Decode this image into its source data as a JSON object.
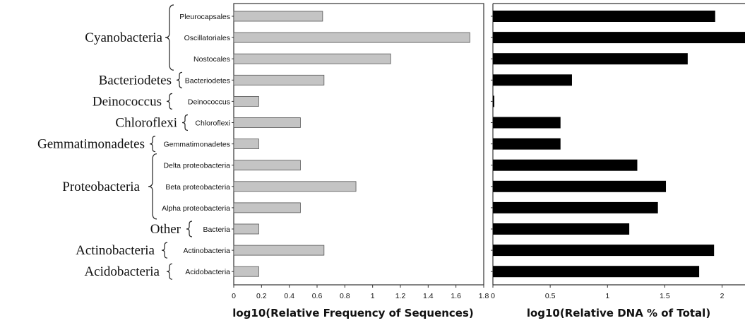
{
  "chart_data": [
    {
      "type": "bar",
      "orientation": "horizontal",
      "categories": [
        "Pleurocapsales",
        "Oscillatoriales",
        "Nostocales",
        "Bacteriodetes",
        "Deinococcus",
        "Chloroflexi",
        "Gemmatimonadetes",
        "Delta proteobacteria",
        "Beta proteobacteria",
        "Alpha proteobacteria",
        "Bacteria",
        "Actinobacteria",
        "Acidobacteria"
      ],
      "values": [
        0.64,
        1.7,
        1.13,
        0.65,
        0.18,
        0.48,
        0.18,
        0.48,
        0.88,
        0.48,
        0.18,
        0.65,
        0.18
      ],
      "xlabel": "log10(Relative Frequency of Sequences)",
      "xlim": [
        0,
        1.8
      ],
      "xticks": [
        "0",
        "0.2",
        "0.4",
        "0.6",
        "0.8",
        "1",
        "1.2",
        "1.4",
        "1.6",
        "1.8"
      ],
      "bar_color": "#c4c4c4",
      "grid": false
    },
    {
      "type": "bar",
      "orientation": "horizontal",
      "categories": [
        "Pleurocapsales",
        "Oscillatoriales",
        "Nostocales",
        "Bacteriodetes",
        "Deinococcus",
        "Chloroflexi",
        "Gemmatimonadetes",
        "Delta proteobacteria",
        "Beta proteobacteria",
        "Alpha proteobacteria",
        "Bacteria",
        "Actinobacteria",
        "Acidobacteria"
      ],
      "values": [
        1.94,
        2.25,
        1.7,
        0.69,
        0.01,
        0.59,
        0.59,
        1.26,
        1.51,
        1.44,
        1.19,
        1.93,
        1.8
      ],
      "xlabel": "log10(Relative DNA % of Total)",
      "xlim": [
        0,
        2.2
      ],
      "xticks": [
        "0",
        "0.5",
        "1",
        "1.5",
        "2"
      ],
      "bar_color": "#000000",
      "grid": false
    }
  ],
  "groups": [
    {
      "label": "Cyanobacteria",
      "rows": [
        0,
        2
      ]
    },
    {
      "label": "Bacteriodetes",
      "rows": [
        3,
        3
      ]
    },
    {
      "label": "Deinococcus",
      "rows": [
        4,
        4
      ]
    },
    {
      "label": "Chloroflexi",
      "rows": [
        5,
        5
      ]
    },
    {
      "label": "Gemmatimonadetes",
      "rows": [
        6,
        6
      ]
    },
    {
      "label": "Proteobacteria",
      "rows": [
        7,
        9
      ]
    },
    {
      "label": "Other",
      "rows": [
        10,
        10
      ]
    },
    {
      "label": "Actinobacteria",
      "rows": [
        11,
        11
      ]
    },
    {
      "label": "Acidobacteria",
      "rows": [
        12,
        12
      ]
    }
  ]
}
